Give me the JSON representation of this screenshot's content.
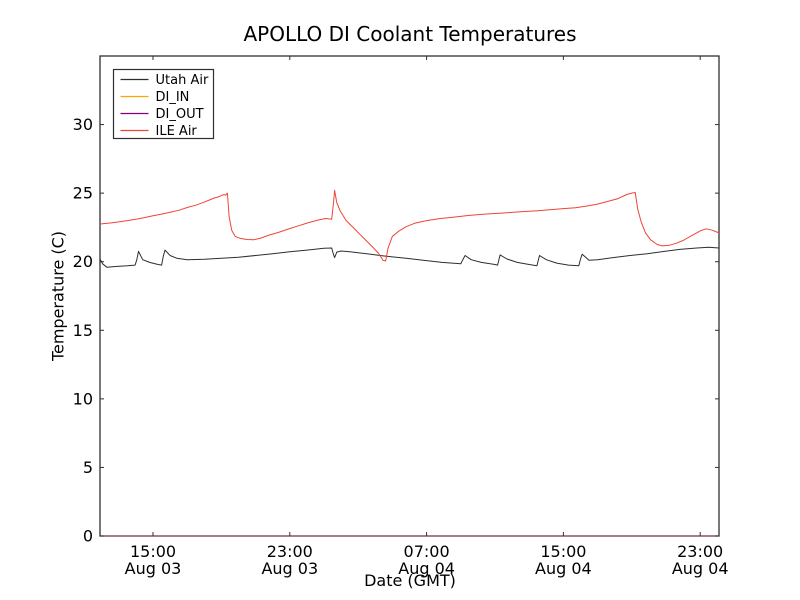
{
  "window": {
    "background": "#ffffff"
  },
  "chart_data": {
    "type": "line",
    "title": "APOLLO DI Coolant Temperatures",
    "xlabel": "Date (GMT)",
    "ylabel": "Temperature (C)",
    "grid": false,
    "x_axis": {
      "unit": "hours since Aug 03 00:00 GMT",
      "range": [
        11.9,
        48.1
      ],
      "ticks": [
        {
          "t": 15,
          "time": "15:00",
          "date": "Aug 03"
        },
        {
          "t": 23,
          "time": "23:00",
          "date": "Aug 03"
        },
        {
          "t": 31,
          "time": "07:00",
          "date": "Aug 04"
        },
        {
          "t": 39,
          "time": "15:00",
          "date": "Aug 04"
        },
        {
          "t": 47,
          "time": "23:00",
          "date": "Aug 04"
        }
      ]
    },
    "y_axis": {
      "range": [
        0,
        35
      ],
      "ticks": [
        0,
        5,
        10,
        15,
        20,
        25,
        30
      ]
    },
    "legend": {
      "position": "upper-left",
      "border": "#2f2f2f",
      "background": "#ffffff"
    },
    "series": [
      {
        "name": "Utah Air",
        "color": "#2e2e2e",
        "x": [
          11.9,
          12.05,
          12.3,
          12.8,
          13.5,
          13.95,
          14.05,
          14.15,
          14.4,
          14.8,
          15.3,
          15.5,
          15.6,
          15.7,
          16.0,
          16.4,
          17.0,
          18.0,
          19.0,
          20.0,
          21.0,
          22.0,
          23.0,
          24.0,
          25.0,
          25.45,
          25.55,
          25.62,
          25.75,
          26.0,
          26.5,
          27.0,
          27.5,
          28.3,
          29.0,
          29.8,
          30.8,
          31.9,
          33.0,
          33.1,
          33.25,
          33.6,
          34.2,
          35.0,
          35.15,
          35.3,
          35.7,
          36.3,
          37.0,
          37.45,
          37.6,
          38.0,
          38.6,
          39.3,
          39.9,
          40.0,
          40.1,
          40.5,
          41.0,
          41.9,
          42.9,
          43.9,
          44.9,
          45.8,
          46.8,
          47.5,
          48.1
        ],
        "y": [
          20.2,
          19.85,
          19.6,
          19.65,
          19.7,
          19.75,
          20.15,
          20.75,
          20.15,
          19.95,
          19.8,
          19.75,
          20.4,
          20.85,
          20.45,
          20.25,
          20.15,
          20.18,
          20.25,
          20.32,
          20.45,
          20.58,
          20.72,
          20.85,
          20.98,
          21.0,
          20.55,
          20.3,
          20.7,
          20.78,
          20.72,
          20.65,
          20.58,
          20.45,
          20.35,
          20.25,
          20.1,
          19.95,
          19.85,
          20.1,
          20.45,
          20.15,
          19.95,
          19.8,
          19.75,
          20.5,
          20.2,
          19.95,
          19.8,
          19.7,
          20.45,
          20.15,
          19.9,
          19.75,
          19.7,
          20.2,
          20.55,
          20.1,
          20.15,
          20.3,
          20.45,
          20.58,
          20.75,
          20.9,
          21.0,
          21.05,
          21.0
        ]
      },
      {
        "name": "DI_IN",
        "color": "#ffa500",
        "x": [
          11.9,
          48.1
        ],
        "y": [
          0,
          0
        ]
      },
      {
        "name": "DI_OUT",
        "color": "#800080",
        "x": [
          11.9,
          48.1
        ],
        "y": [
          0,
          0
        ]
      },
      {
        "name": "ILE Air",
        "color": "#ef4438",
        "x": [
          11.9,
          12.5,
          13.0,
          13.5,
          14.0,
          14.5,
          15.0,
          15.5,
          16.0,
          16.5,
          17.0,
          17.5,
          17.9,
          18.3,
          18.6,
          18.8,
          19.0,
          19.15,
          19.25,
          19.35,
          19.45,
          19.6,
          19.8,
          20.1,
          20.5,
          20.9,
          21.3,
          21.8,
          22.3,
          22.9,
          23.5,
          24.1,
          24.7,
          25.1,
          25.3,
          25.45,
          25.55,
          25.62,
          25.75,
          25.95,
          26.3,
          26.7,
          27.1,
          27.5,
          27.9,
          28.2,
          28.45,
          28.6,
          28.75,
          29.0,
          29.4,
          29.8,
          30.3,
          31.0,
          31.8,
          32.6,
          33.5,
          34.5,
          35.5,
          36.5,
          37.5,
          38.3,
          39.0,
          39.7,
          40.3,
          41.0,
          41.6,
          42.2,
          42.7,
          43.0,
          43.2,
          43.35,
          43.55,
          43.8,
          44.1,
          44.5,
          44.8,
          45.2,
          45.6,
          46.0,
          46.5,
          47.0,
          47.35,
          47.7,
          48.1
        ],
        "y": [
          22.75,
          22.82,
          22.9,
          23.0,
          23.1,
          23.22,
          23.35,
          23.47,
          23.6,
          23.75,
          23.95,
          24.12,
          24.3,
          24.5,
          24.65,
          24.72,
          24.82,
          24.9,
          24.85,
          25.0,
          23.3,
          22.3,
          21.85,
          21.7,
          21.62,
          21.6,
          21.72,
          21.95,
          22.12,
          22.38,
          22.62,
          22.85,
          23.05,
          23.15,
          23.12,
          23.1,
          24.2,
          25.2,
          24.3,
          23.7,
          23.0,
          22.5,
          22.0,
          21.5,
          21.0,
          20.6,
          20.1,
          20.05,
          21.0,
          21.85,
          22.25,
          22.55,
          22.8,
          23.0,
          23.15,
          23.25,
          23.38,
          23.48,
          23.55,
          23.65,
          23.72,
          23.8,
          23.87,
          23.93,
          24.05,
          24.2,
          24.4,
          24.6,
          24.9,
          25.0,
          25.05,
          23.8,
          22.9,
          22.1,
          21.6,
          21.25,
          21.15,
          21.2,
          21.35,
          21.55,
          21.9,
          22.25,
          22.4,
          22.3,
          22.1
        ]
      }
    ]
  }
}
